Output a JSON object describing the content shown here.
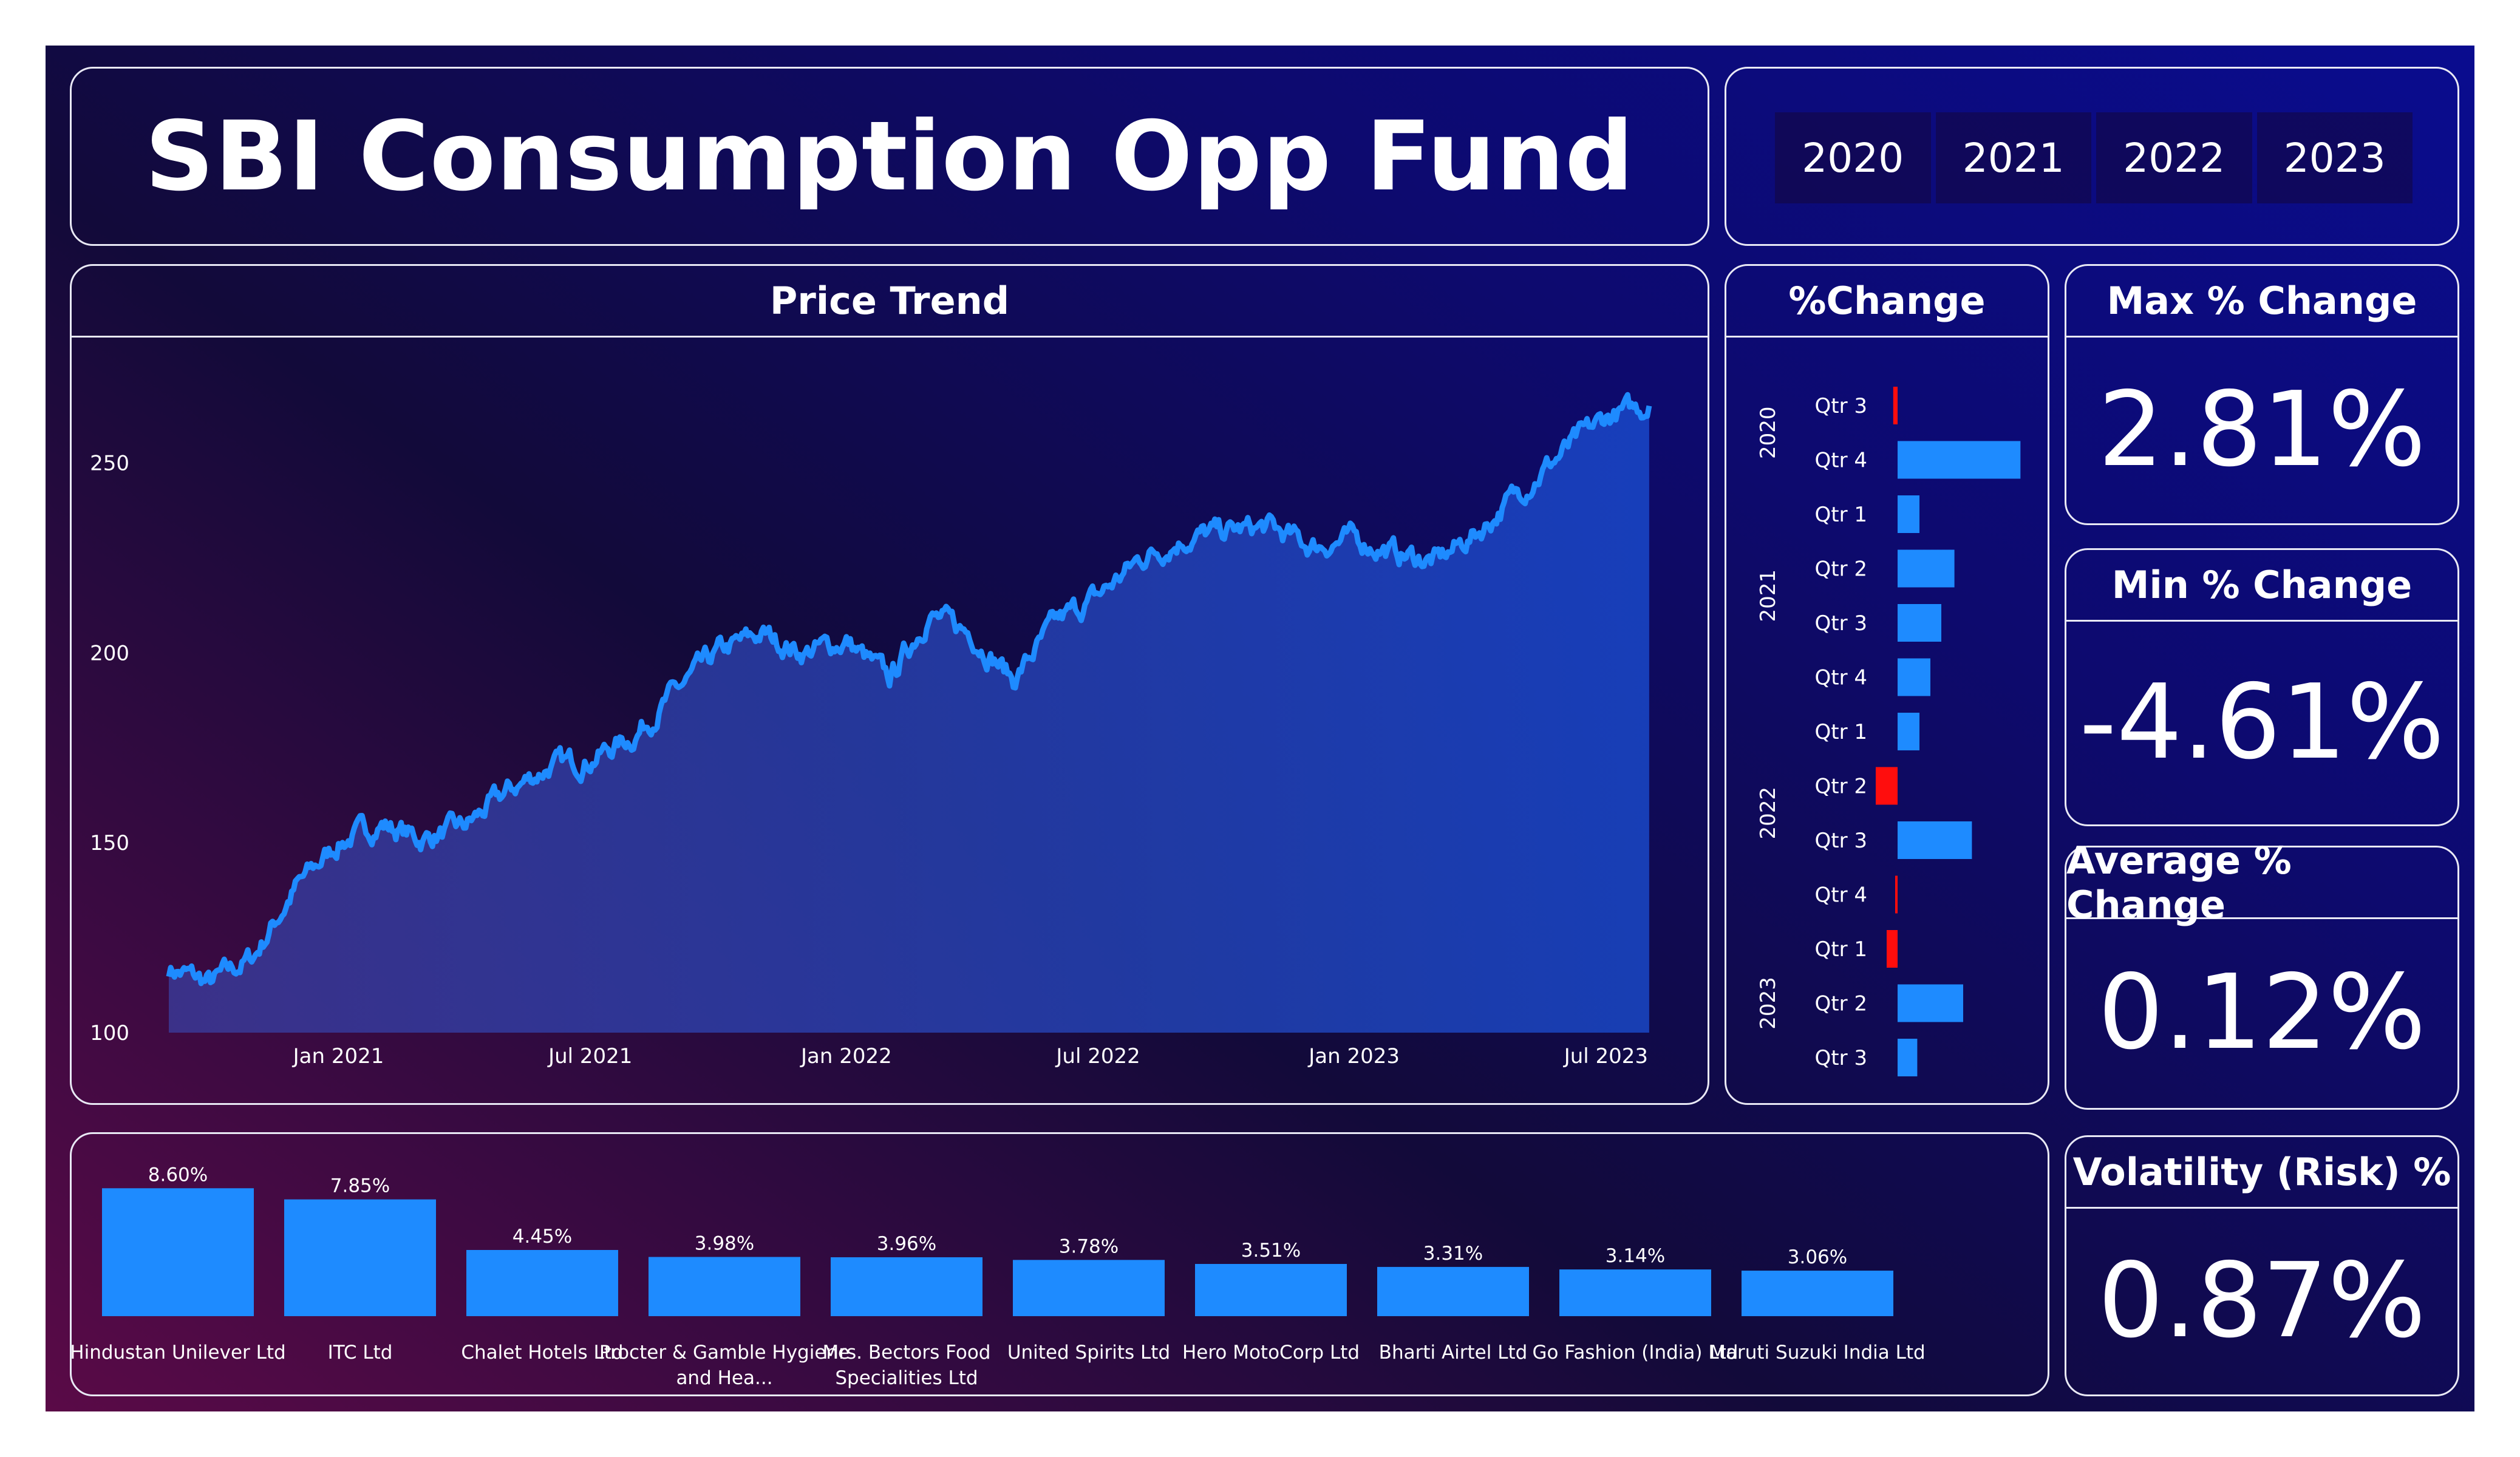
{
  "title": "SBI Consumption Opp Fund",
  "year_slicer": [
    "2020",
    "2021",
    "2022",
    "2023"
  ],
  "panels": {
    "price_trend": "Price Trend",
    "pct_change": "%Change",
    "max_label": "Max % Change",
    "min_label": "Min % Change",
    "avg_label": "Average % Change",
    "vol_label": "Volatility (Risk) %"
  },
  "kpis": {
    "max": "2.81%",
    "min": "-4.61%",
    "avg": "0.12%",
    "volatility": "0.87%"
  },
  "colors": {
    "accent": "#1e8bff",
    "negative": "#ff0d0d",
    "panel_border": "#e9e9f5"
  },
  "chart_data": [
    {
      "type": "area",
      "title": "Price Trend",
      "x_ticks": [
        "Jan 2021",
        "Jul 2021",
        "Jan 2022",
        "Jul 2022",
        "Jan 2023",
        "Jul 2023"
      ],
      "y_ticks": [
        100,
        150,
        200,
        250
      ],
      "ylim": [
        100,
        275
      ],
      "x": [
        "2020-09",
        "2020-10",
        "2020-11",
        "2020-12",
        "2021-01",
        "2021-02",
        "2021-03",
        "2021-04",
        "2021-05",
        "2021-06",
        "2021-07",
        "2021-08",
        "2021-09",
        "2021-10",
        "2021-11",
        "2021-12",
        "2022-01",
        "2022-02",
        "2022-03",
        "2022-04",
        "2022-05",
        "2022-06",
        "2022-07",
        "2022-08",
        "2022-09",
        "2022-10",
        "2022-11",
        "2022-12",
        "2023-01",
        "2023-02",
        "2023-03",
        "2023-04",
        "2023-05",
        "2023-06",
        "2023-07",
        "2023-08"
      ],
      "values": [
        117,
        113,
        120,
        138,
        150,
        155,
        151,
        154,
        163,
        170,
        172,
        178,
        190,
        200,
        205,
        200,
        203,
        193,
        210,
        205,
        193,
        208,
        215,
        225,
        230,
        232,
        233,
        228,
        230,
        226,
        224,
        232,
        243,
        253,
        262,
        265
      ]
    },
    {
      "type": "bar",
      "orientation": "horizontal",
      "title": "%Change",
      "groups": [
        {
          "year": "2020",
          "quarters": [
            "Qtr 3",
            "Qtr 4"
          ]
        },
        {
          "year": "2021",
          "quarters": [
            "Qtr 1",
            "Qtr 2",
            "Qtr 3",
            "Qtr 4"
          ]
        },
        {
          "year": "2022",
          "quarters": [
            "Qtr 1",
            "Qtr 2",
            "Qtr 3",
            "Qtr 4"
          ]
        },
        {
          "year": "2023",
          "quarters": [
            "Qtr 1",
            "Qtr 2",
            "Qtr 3"
          ]
        }
      ],
      "values": [
        -0.1,
        2.81,
        0.5,
        1.3,
        1.0,
        0.75,
        0.5,
        -0.5,
        1.7,
        -0.05,
        -0.25,
        1.5,
        0.45
      ]
    },
    {
      "type": "bar",
      "title": "",
      "categories": [
        "Hindustan Unilever Ltd",
        "ITC Ltd",
        "Chalet Hotels Ltd",
        "Procter & Gamble Hygiene and Hea...",
        "Mrs. Bectors Food Specialities Ltd",
        "United Spirits Ltd",
        "Hero MotoCorp Ltd",
        "Bharti Airtel Ltd",
        "Go Fashion (India) Ltd",
        "Maruti Suzuki India Ltd"
      ],
      "values": [
        8.6,
        7.85,
        4.45,
        3.98,
        3.96,
        3.78,
        3.51,
        3.31,
        3.14,
        3.06
      ],
      "value_labels": [
        "8.60%",
        "7.85%",
        "4.45%",
        "3.98%",
        "3.96%",
        "3.78%",
        "3.51%",
        "3.31%",
        "3.14%",
        "3.06%"
      ]
    }
  ]
}
